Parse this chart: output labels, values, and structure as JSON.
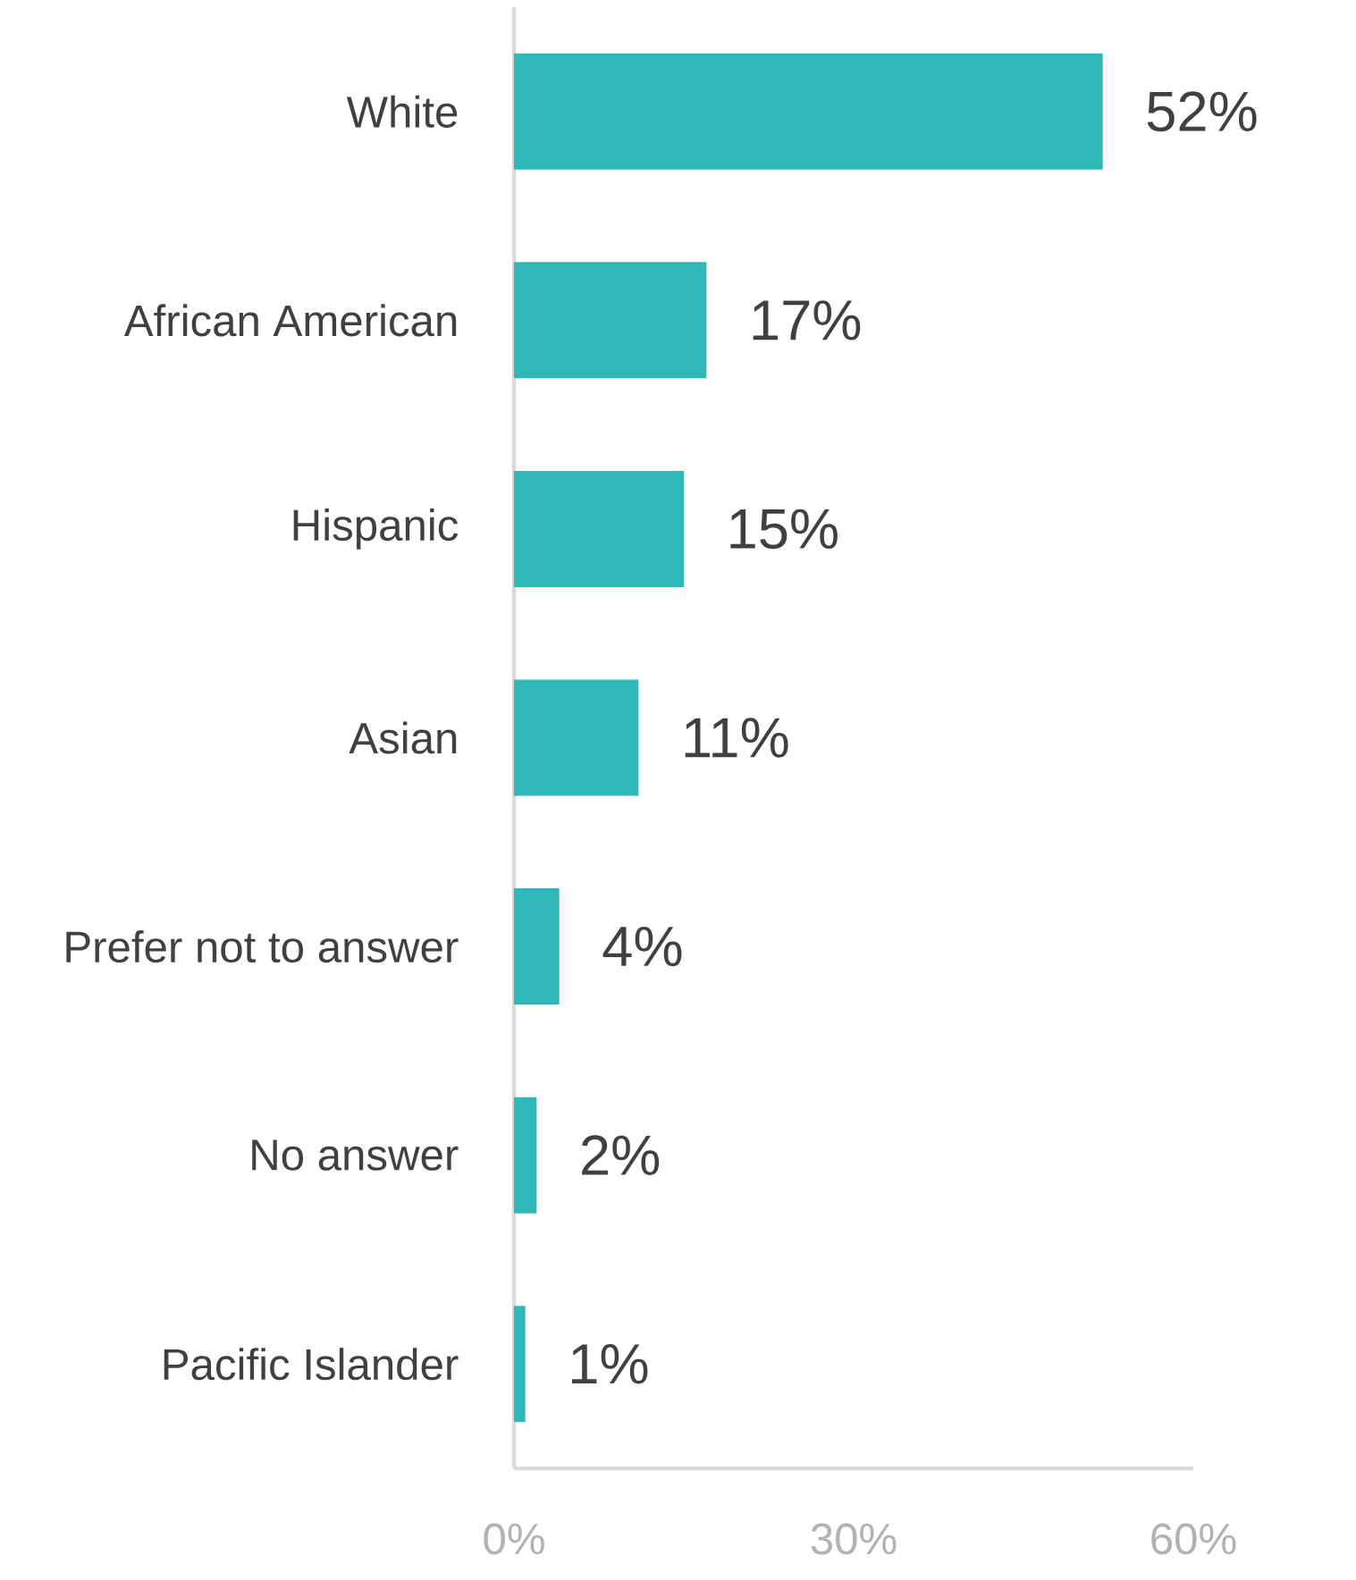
{
  "chart_data": {
    "type": "bar",
    "orientation": "horizontal",
    "categories": [
      "White",
      "African American",
      "Hispanic",
      "Asian",
      "Prefer not to answer",
      "No answer",
      "Pacific Islander"
    ],
    "values": [
      52,
      17,
      15,
      11,
      4,
      2,
      1
    ],
    "value_labels": [
      "52%",
      "17%",
      "15%",
      "11%",
      "4%",
      "2%",
      "1%"
    ],
    "color": "#2fb8b8",
    "xlim": [
      0,
      60
    ],
    "xticks": [
      {
        "value": 0,
        "label": "0%"
      },
      {
        "value": 30,
        "label": "30%"
      },
      {
        "value": 60,
        "label": "60%"
      }
    ],
    "grid": false
  }
}
